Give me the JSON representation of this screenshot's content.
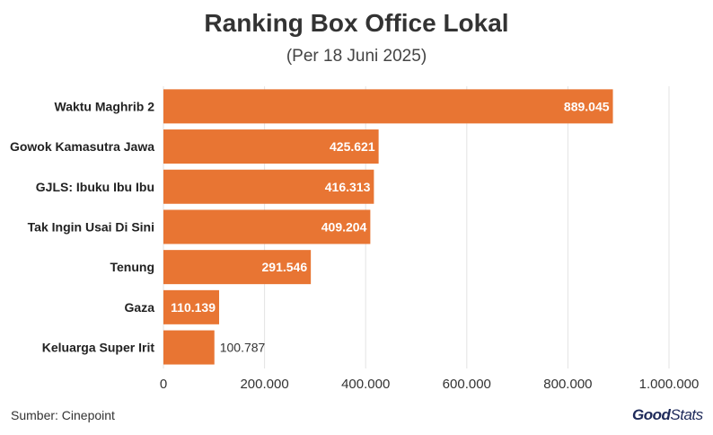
{
  "header": {
    "title": "Ranking Box Office Lokal",
    "subtitle": "(Per 18 Juni 2025)"
  },
  "footer": {
    "source": "Sumber: Cinepoint",
    "brand_bold": "Good",
    "brand_thin": "Stats"
  },
  "colors": {
    "bar": "#E87533",
    "grid": "#e3e3e3",
    "label_inside": "#ffffff",
    "label_outside": "#333333"
  },
  "chart_data": {
    "type": "bar",
    "orientation": "horizontal",
    "title": "Ranking Box Office Lokal",
    "subtitle": "(Per 18 Juni 2025)",
    "categories": [
      "Waktu Maghrib 2",
      "Gowok Kamasutra Jawa",
      "GJLS: Ibuku Ibu Ibu",
      "Tak Ingin Usai Di Sini",
      "Tenung",
      "Gaza",
      "Keluarga Super Irit"
    ],
    "values": [
      889045,
      425621,
      416313,
      409204,
      291546,
      110139,
      100787
    ],
    "value_labels": [
      "889.045",
      "425.621",
      "416.313",
      "409.204",
      "291.546",
      "110.139",
      "100.787"
    ],
    "xlim": [
      0,
      1000000
    ],
    "xticks": [
      0,
      200000,
      400000,
      600000,
      800000,
      1000000
    ],
    "xtick_labels": [
      "0",
      "200.000",
      "400.000",
      "600.000",
      "800.000",
      "1.000.000"
    ],
    "grid": true
  }
}
